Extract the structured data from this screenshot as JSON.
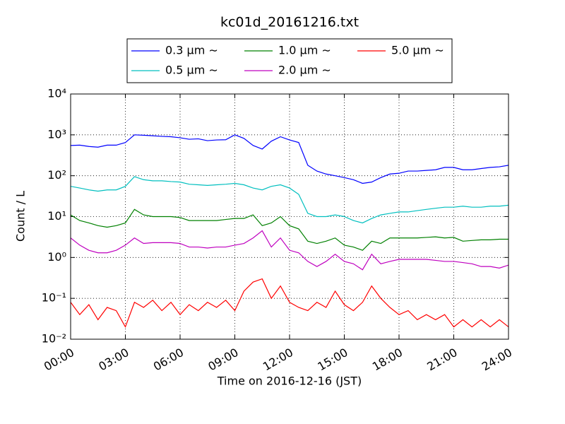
{
  "chart_data": {
    "type": "line",
    "title": "kc01d_20161216.txt",
    "xlabel": "Time on 2016-12-16 (JST)",
    "ylabel": "Count / L",
    "yscale": "log",
    "grid": true,
    "legend": "upper center",
    "legend_columns": 3,
    "xlim": [
      0,
      24
    ],
    "xticks": [
      {
        "value": 0,
        "label": "00:00"
      },
      {
        "value": 3,
        "label": "03:00"
      },
      {
        "value": 6,
        "label": "06:00"
      },
      {
        "value": 9,
        "label": "09:00"
      },
      {
        "value": 12,
        "label": "12:00"
      },
      {
        "value": 15,
        "label": "15:00"
      },
      {
        "value": 18,
        "label": "18:00"
      },
      {
        "value": 21,
        "label": "21:00"
      },
      {
        "value": 24,
        "label": "24:00"
      }
    ],
    "ylim": [
      0.01,
      10000
    ],
    "yticks": [
      {
        "value": 0.01,
        "label": "10⁻²"
      },
      {
        "value": 0.1,
        "label": "10⁻¹"
      },
      {
        "value": 1,
        "label": "10⁰"
      },
      {
        "value": 10,
        "label": "10¹"
      },
      {
        "value": 100,
        "label": "10²"
      },
      {
        "value": 1000,
        "label": "10³"
      },
      {
        "value": 10000,
        "label": "10⁴"
      }
    ],
    "x": [
      0,
      0.5,
      1,
      1.5,
      2,
      2.5,
      3,
      3.5,
      4,
      4.5,
      5,
      5.5,
      6,
      6.5,
      7,
      7.5,
      8,
      8.5,
      9,
      9.5,
      10,
      10.5,
      11,
      11.5,
      12,
      12.5,
      13,
      13.5,
      14,
      14.5,
      15,
      15.5,
      16,
      16.5,
      17,
      17.5,
      18,
      18.5,
      19,
      19.5,
      20,
      20.5,
      21,
      21.5,
      22,
      22.5,
      23,
      23.5,
      24
    ],
    "series": [
      {
        "name": "0.3 μm ∼",
        "color": "#0000ff",
        "values": [
          550,
          560,
          520,
          500,
          560,
          560,
          650,
          1000,
          980,
          950,
          920,
          900,
          850,
          780,
          800,
          720,
          750,
          760,
          1000,
          820,
          550,
          450,
          700,
          900,
          750,
          650,
          180,
          130,
          110,
          100,
          90,
          80,
          65,
          70,
          90,
          110,
          115,
          130,
          130,
          135,
          140,
          160,
          160,
          140,
          140,
          150,
          160,
          165,
          180
        ]
      },
      {
        "name": "0.5 μm ∼",
        "color": "#00bfbf",
        "values": [
          55,
          50,
          45,
          42,
          45,
          45,
          55,
          95,
          80,
          75,
          75,
          72,
          70,
          62,
          60,
          58,
          60,
          62,
          65,
          60,
          50,
          45,
          55,
          60,
          50,
          35,
          12,
          10,
          10,
          11,
          10,
          8,
          7,
          9,
          11,
          12,
          13,
          13,
          14,
          15,
          16,
          17,
          17,
          18,
          17,
          17,
          18,
          18,
          19
        ]
      },
      {
        "name": "1.0 μm ∼",
        "color": "#008000",
        "values": [
          11,
          8,
          7,
          6,
          5.5,
          6,
          7,
          15,
          11,
          10,
          10,
          10,
          9.5,
          8,
          8,
          8,
          8,
          8.5,
          9,
          9,
          11,
          6,
          7,
          10,
          6,
          5,
          2.5,
          2.2,
          2.5,
          3,
          2,
          1.8,
          1.5,
          2.5,
          2.2,
          3,
          3,
          3,
          3,
          3.1,
          3.2,
          3,
          3.1,
          2.5,
          2.6,
          2.7,
          2.7,
          2.8,
          2.8
        ]
      },
      {
        "name": "2.0 μm ∼",
        "color": "#bf00bf",
        "values": [
          3,
          2,
          1.5,
          1.3,
          1.3,
          1.5,
          2,
          3,
          2.2,
          2.3,
          2.3,
          2.3,
          2.2,
          1.8,
          1.8,
          1.7,
          1.8,
          1.8,
          2,
          2.2,
          3,
          4.5,
          1.8,
          3,
          1.5,
          1.3,
          0.8,
          0.6,
          0.8,
          1.2,
          0.8,
          0.7,
          0.5,
          1.2,
          0.7,
          0.8,
          0.9,
          0.9,
          0.9,
          0.9,
          0.85,
          0.8,
          0.8,
          0.75,
          0.7,
          0.6,
          0.6,
          0.55,
          0.65
        ]
      },
      {
        "name": "5.0 μm ∼",
        "color": "#ff0000",
        "values": [
          0.08,
          0.04,
          0.07,
          0.03,
          0.06,
          0.05,
          0.02,
          0.08,
          0.06,
          0.09,
          0.05,
          0.08,
          0.04,
          0.07,
          0.05,
          0.08,
          0.06,
          0.09,
          0.05,
          0.15,
          0.25,
          0.3,
          0.1,
          0.2,
          0.08,
          0.06,
          0.05,
          0.08,
          0.06,
          0.15,
          0.07,
          0.05,
          0.08,
          0.2,
          0.1,
          0.06,
          0.04,
          0.05,
          0.03,
          0.04,
          0.03,
          0.04,
          0.02,
          0.03,
          0.02,
          0.03,
          0.02,
          0.03,
          0.02
        ]
      }
    ]
  }
}
